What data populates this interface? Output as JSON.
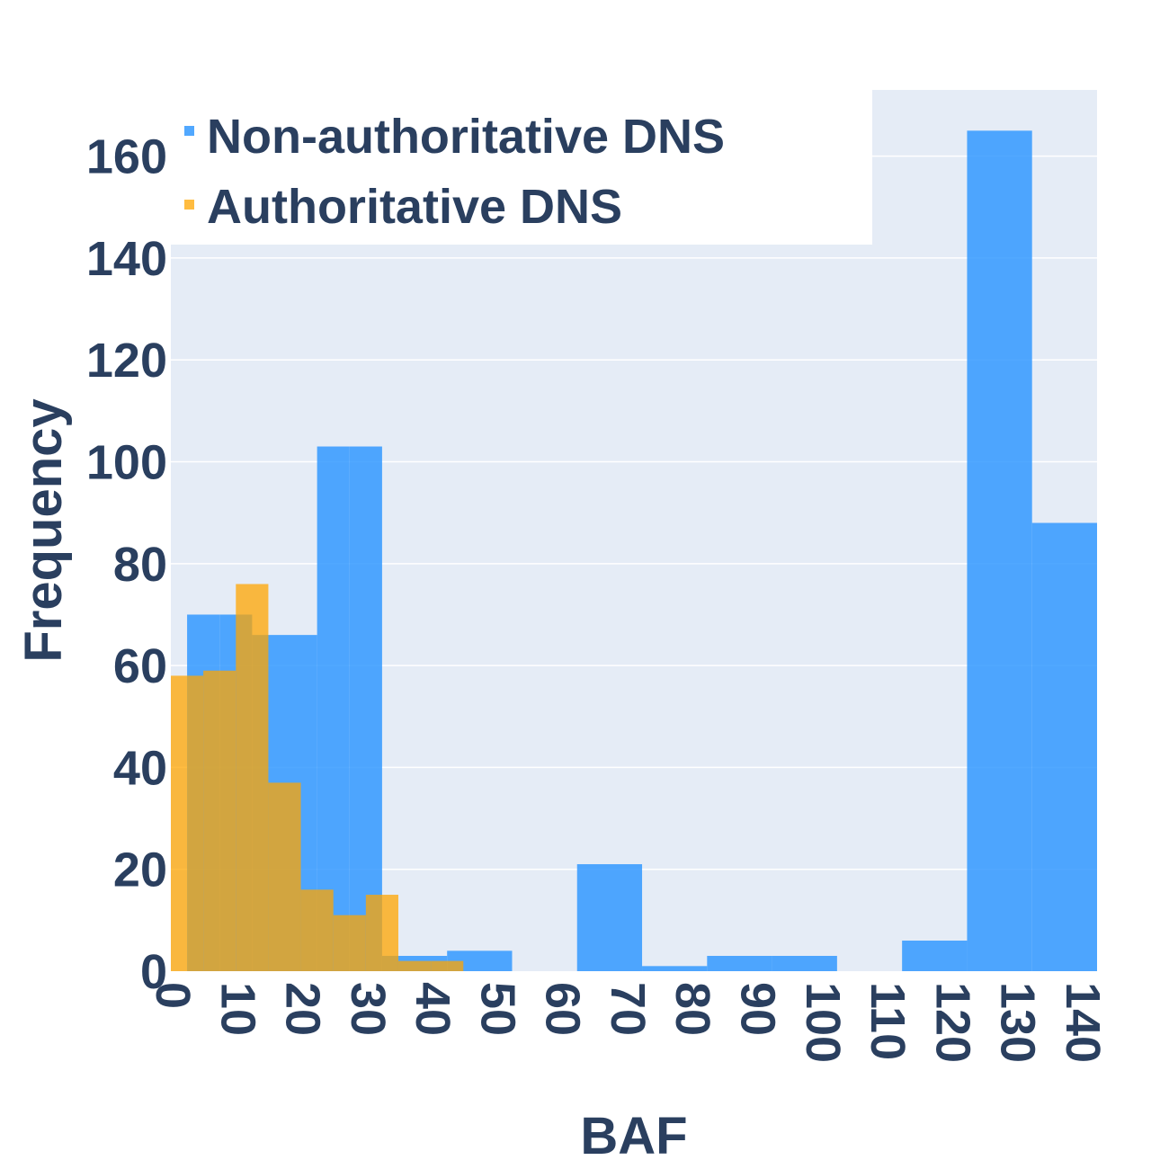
{
  "chart_data": {
    "type": "bar",
    "title": "",
    "xlabel": "BAF",
    "ylabel": "Frequency",
    "xlim": [
      0,
      142.5
    ],
    "ylim": [
      0,
      173
    ],
    "x_ticks": [
      "0",
      "10",
      "20",
      "30",
      "40",
      "50",
      "60",
      "70",
      "80",
      "90",
      "100",
      "110",
      "120",
      "130",
      "140"
    ],
    "y_ticks": [
      "0",
      "20",
      "40",
      "60",
      "80",
      "100",
      "120",
      "140",
      "160"
    ],
    "grid": true,
    "legend_position": "top-left",
    "barmode": "overlay",
    "series": [
      {
        "name": "Non-authoritative DNS",
        "color": "#3399ff",
        "bins": [
          {
            "x0": 2.5,
            "x1": 7.5,
            "value": 70
          },
          {
            "x0": 7.5,
            "x1": 12.5,
            "value": 70
          },
          {
            "x0": 12.5,
            "x1": 17.5,
            "value": 66
          },
          {
            "x0": 17.5,
            "x1": 22.5,
            "value": 66
          },
          {
            "x0": 22.5,
            "x1": 27.5,
            "value": 103
          },
          {
            "x0": 27.5,
            "x1": 32.5,
            "value": 103
          },
          {
            "x0": 32.5,
            "x1": 42.5,
            "value": 3
          },
          {
            "x0": 42.5,
            "x1": 52.5,
            "value": 4
          },
          {
            "x0": 52.5,
            "x1": 62.5,
            "value": 0
          },
          {
            "x0": 62.5,
            "x1": 72.5,
            "value": 21
          },
          {
            "x0": 72.5,
            "x1": 82.5,
            "value": 1
          },
          {
            "x0": 82.5,
            "x1": 92.5,
            "value": 3
          },
          {
            "x0": 92.5,
            "x1": 102.5,
            "value": 3
          },
          {
            "x0": 102.5,
            "x1": 112.5,
            "value": 0
          },
          {
            "x0": 112.5,
            "x1": 122.5,
            "value": 6
          },
          {
            "x0": 122.5,
            "x1": 132.5,
            "value": 165
          },
          {
            "x0": 132.5,
            "x1": 142.5,
            "value": 88
          }
        ]
      },
      {
        "name": "Authoritative DNS",
        "color": "#ffa500",
        "bins": [
          {
            "x0": 0,
            "x1": 2.5,
            "value": 58
          },
          {
            "x0": 2.5,
            "x1": 5,
            "value": 58
          },
          {
            "x0": 5,
            "x1": 10,
            "value": 59
          },
          {
            "x0": 10,
            "x1": 15,
            "value": 76
          },
          {
            "x0": 15,
            "x1": 20,
            "value": 37
          },
          {
            "x0": 20,
            "x1": 25,
            "value": 16
          },
          {
            "x0": 25,
            "x1": 30,
            "value": 11
          },
          {
            "x0": 30,
            "x1": 35,
            "value": 15
          },
          {
            "x0": 35,
            "x1": 40,
            "value": 2
          },
          {
            "x0": 40,
            "x1": 45,
            "value": 2
          }
        ]
      }
    ]
  }
}
